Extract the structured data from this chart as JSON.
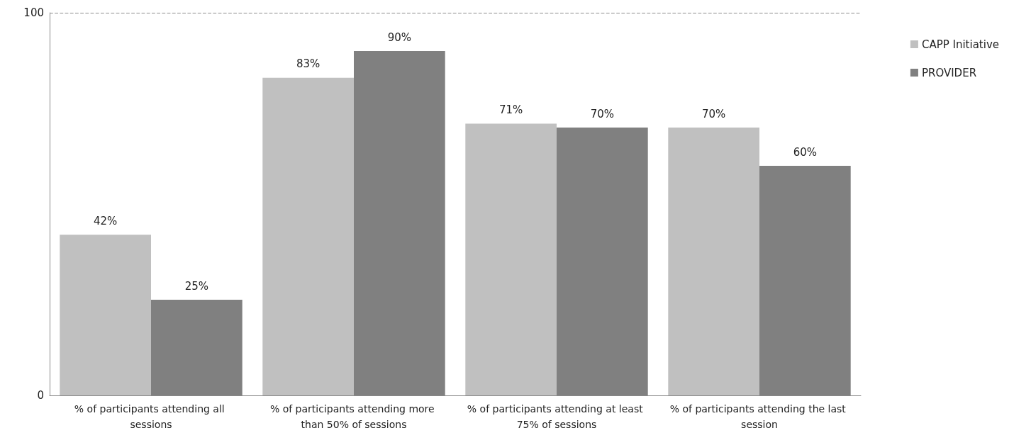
{
  "chart_data": {
    "type": "bar",
    "categories": [
      "% of participants attending all sessions",
      "% of participants attending more than 50% of sessions",
      "% of participants attending at least 75% of sessions",
      "% of participants attending the last session"
    ],
    "series": [
      {
        "name": "CAPP Initiative",
        "color": "#c0c0c0",
        "values": [
          42,
          83,
          71,
          70
        ],
        "value_labels": [
          "42%",
          "83%",
          "71%",
          "70%"
        ]
      },
      {
        "name": "PROVIDER",
        "color": "#808080",
        "values": [
          25,
          90,
          70,
          60
        ],
        "value_labels": [
          "25%",
          "90%",
          "70%",
          "60%"
        ]
      }
    ],
    "ylim": [
      0,
      100
    ],
    "yticks": [
      0,
      100
    ],
    "legend": "top right",
    "ref_lines": [
      {
        "axis": "y",
        "value": 100,
        "color": "#8c8c8c",
        "line_style": "dashed"
      }
    ]
  }
}
